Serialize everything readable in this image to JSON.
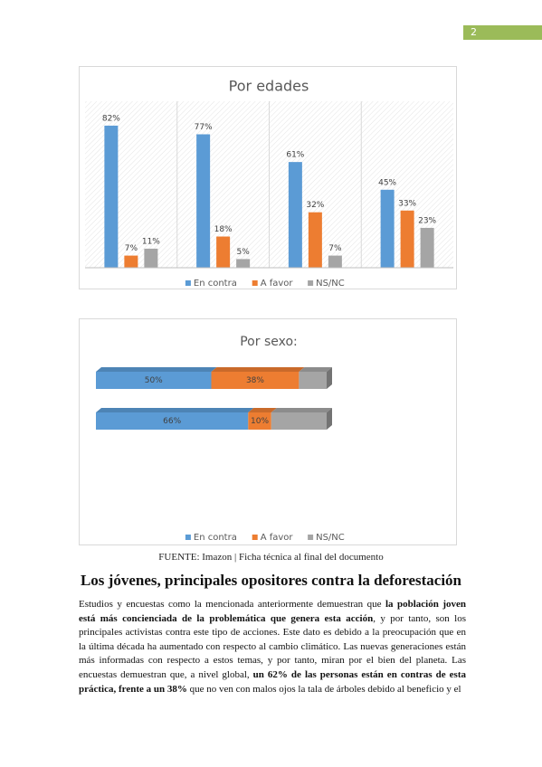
{
  "page_number": "2",
  "chart_data": [
    {
      "type": "bar",
      "title": "Por edades",
      "categories": [
        null,
        null,
        null,
        null
      ],
      "series": [
        {
          "name": "En contra",
          "color": "#5b9bd5",
          "values": [
            82,
            77,
            61,
            45
          ],
          "value_labels": [
            "82%",
            "77%",
            "61%",
            "45%"
          ]
        },
        {
          "name": "A favor",
          "color": "#ed7d31",
          "values": [
            7,
            18,
            32,
            33
          ],
          "value_labels": [
            "7%",
            "18%",
            "32%",
            "33%"
          ]
        },
        {
          "name": "NS/NC",
          "color": "#a5a5a5",
          "values": [
            11,
            5,
            7,
            23
          ],
          "value_labels": [
            "11%",
            "5%",
            "7%",
            "23%"
          ]
        }
      ],
      "legend": "bottom"
    },
    {
      "type": "stacked_barh",
      "title": "Por sexo:",
      "categories": [
        null,
        null
      ],
      "series": [
        {
          "name": "En contra",
          "color": "#5b9bd5",
          "values": [
            50,
            66
          ],
          "value_labels": [
            "50%",
            "66%"
          ]
        },
        {
          "name": "A favor",
          "color": "#ed7d31",
          "values": [
            38,
            10
          ],
          "value_labels": [
            "38%",
            "10%"
          ]
        },
        {
          "name": "NS/NC",
          "color": "#a5a5a5",
          "values": [
            12,
            24
          ]
        }
      ],
      "legend": "bottom"
    }
  ],
  "document": {
    "source": "FUENTE: Imazon | Ficha técnica al final del documento",
    "heading": "Los jóvenes, principales opositores contra la deforestación",
    "paragraph": [
      {
        "text": "Estudios y encuestas como la mencionada anteriormente demuestran que ",
        "bold": false
      },
      {
        "text": "la población joven está más concienciada de la problemática que genera esta acción",
        "bold": true
      },
      {
        "text": ", y por tanto, son los principales activistas contra este tipo de acciones. Este dato es debido a la preocupación que en la última década ha aumentado con respecto al cambio climático. Las nuevas generaciones están más informadas con respecto a estos temas, y por tanto, miran por el bien del planeta. Las encuestas demuestran que, a nivel global, ",
        "bold": false
      },
      {
        "text": "un 62% de las personas están en contras de esta práctica, frente a un 38%",
        "bold": true
      },
      {
        "text": " que no ven con malos ojos la tala de árboles debido al beneficio y el",
        "bold": false
      }
    ]
  }
}
